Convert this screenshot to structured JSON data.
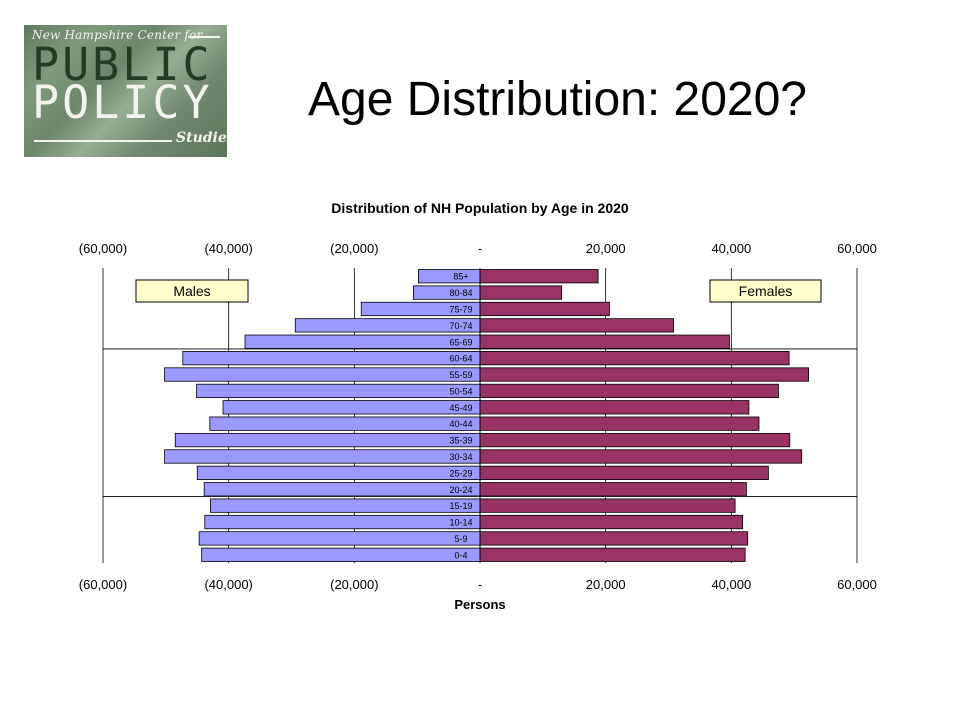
{
  "logo": {
    "top": "New Hampshire Center for",
    "line1": "PUBLIC",
    "line2": "POLICY",
    "bottom": "Studies"
  },
  "slide_title": "Age Distribution: 2020?",
  "colors": {
    "males": "#9999ff",
    "females": "#993366"
  },
  "chart_data": {
    "type": "bar",
    "orientation": "horizontal-pyramid",
    "title": "Distribution of NH Population by Age in 2020",
    "xlabel": "Persons",
    "xlim": [
      -60000,
      60000
    ],
    "x_tick_values": [
      -60000,
      -40000,
      -20000,
      0,
      20000,
      40000,
      60000
    ],
    "x_tick_labels": [
      "(60,000)",
      "(40,000)",
      "(20,000)",
      "-",
      "20,000",
      "40,000",
      "60,000"
    ],
    "categories": [
      "85+",
      "80-84",
      "75-79",
      "70-74",
      "65-69",
      "60-64",
      "55-59",
      "50-54",
      "45-49",
      "40-44",
      "35-39",
      "30-34",
      "25-29",
      "20-24",
      "15-19",
      "10-14",
      "5-9",
      "0-4"
    ],
    "series": [
      {
        "name": "Males",
        "values": [
          -9800,
          -10600,
          -18900,
          -29400,
          -37400,
          -47300,
          -50200,
          -45100,
          -40900,
          -43000,
          -48500,
          -50200,
          -45000,
          -43900,
          -42900,
          -43800,
          -44700,
          -44300
        ]
      },
      {
        "name": "Females",
        "values": [
          18800,
          13000,
          20600,
          30800,
          39700,
          49200,
          52300,
          47500,
          42800,
          44400,
          49300,
          51200,
          45900,
          42400,
          40600,
          41800,
          42600,
          42200
        ]
      }
    ],
    "annotations": [
      "Males",
      "Females"
    ],
    "grid": true
  }
}
